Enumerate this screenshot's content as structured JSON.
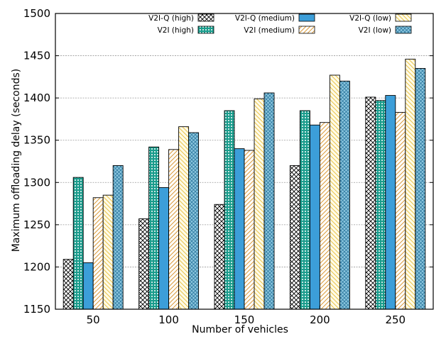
{
  "chart_data": {
    "type": "bar",
    "title": "",
    "xlabel": "Number of vehicles",
    "ylabel": "Maximum offloading delay (seconds)",
    "categories": [
      "50",
      "100",
      "150",
      "200",
      "250"
    ],
    "ylim": [
      1150,
      1500
    ],
    "yticks": [
      1150,
      1200,
      1250,
      1300,
      1350,
      1400,
      1450,
      1500
    ],
    "grid": "horizontal dashed",
    "legend_position": "top",
    "series": [
      {
        "name": "V2I-Q (high)",
        "values": [
          1209,
          1257,
          1274,
          1320,
          1401
        ],
        "pattern": "crosshatch",
        "color": "#000000"
      },
      {
        "name": "V2I (high)",
        "values": [
          1306,
          1342,
          1385,
          1385,
          1397
        ],
        "pattern": "dots",
        "color": "#1a9c8c"
      },
      {
        "name": "V2I-Q (medium)",
        "values": [
          1205,
          1294,
          1340,
          1368,
          1403
        ],
        "pattern": "solid",
        "color": "#3c9ed9"
      },
      {
        "name": "V2I (medium)",
        "values": [
          1282,
          1339,
          1338,
          1371,
          1383
        ],
        "pattern": "diagonal",
        "color": "#e0b050"
      },
      {
        "name": "V2I-Q (low)",
        "values": [
          1285,
          1366,
          1399,
          1427,
          1446
        ],
        "pattern": "diagonal",
        "color": "#f0d070"
      },
      {
        "name": "V2I (low)",
        "values": [
          1320,
          1359,
          1406,
          1420,
          1435
        ],
        "pattern": "crosshatch",
        "color": "#3c8fb0"
      }
    ]
  }
}
